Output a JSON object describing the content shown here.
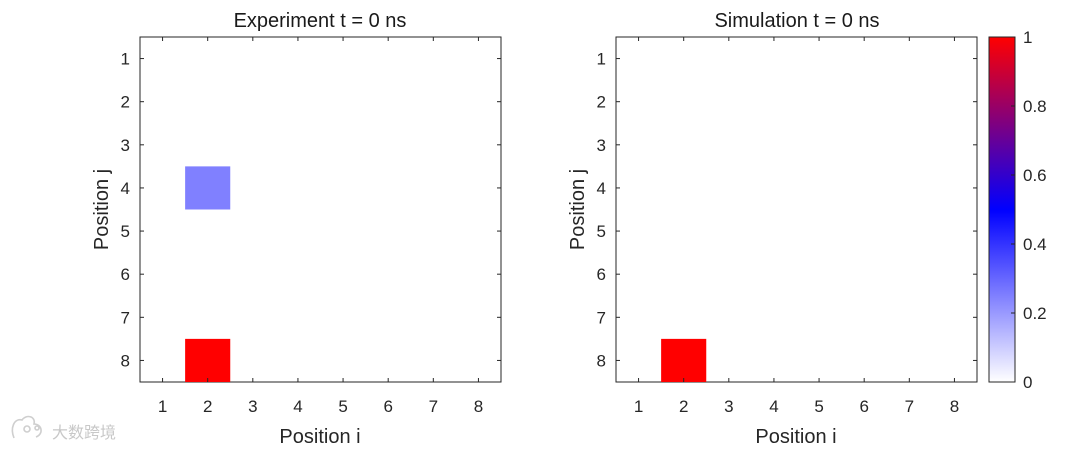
{
  "chart_data": [
    {
      "type": "heatmap",
      "title": "Experiment t = 0 ns",
      "xlabel": "Position i",
      "ylabel": "Position j",
      "x_ticks": [
        1,
        2,
        3,
        4,
        5,
        6,
        7,
        8
      ],
      "y_ticks": [
        1,
        2,
        3,
        4,
        5,
        6,
        7,
        8
      ],
      "xlim": [
        0.5,
        8.5
      ],
      "ylim": [
        0.5,
        8.5
      ],
      "y_reversed": true,
      "cells": [
        {
          "i": 2,
          "j": 4,
          "value": 0.25
        },
        {
          "i": 2,
          "j": 8,
          "value": 1.0
        }
      ]
    },
    {
      "type": "heatmap",
      "title": "Simulation t = 0 ns",
      "xlabel": "Position i",
      "ylabel": "Position j",
      "x_ticks": [
        1,
        2,
        3,
        4,
        5,
        6,
        7,
        8
      ],
      "y_ticks": [
        1,
        2,
        3,
        4,
        5,
        6,
        7,
        8
      ],
      "xlim": [
        0.5,
        8.5
      ],
      "ylim": [
        0.5,
        8.5
      ],
      "y_reversed": true,
      "cells": [
        {
          "i": 2,
          "j": 8,
          "value": 1.0
        }
      ]
    }
  ],
  "colorbar": {
    "range": [
      0,
      1
    ],
    "ticks": [
      "0",
      "0.2",
      "0.4",
      "0.6",
      "0.8",
      "1"
    ],
    "tick_values": [
      0,
      0.2,
      0.4,
      0.6,
      0.8,
      1.0
    ],
    "colors": [
      "#ffffff",
      "#0000ff",
      "#ff0000"
    ],
    "position": "right"
  },
  "watermark": {
    "text": "大数跨境"
  }
}
